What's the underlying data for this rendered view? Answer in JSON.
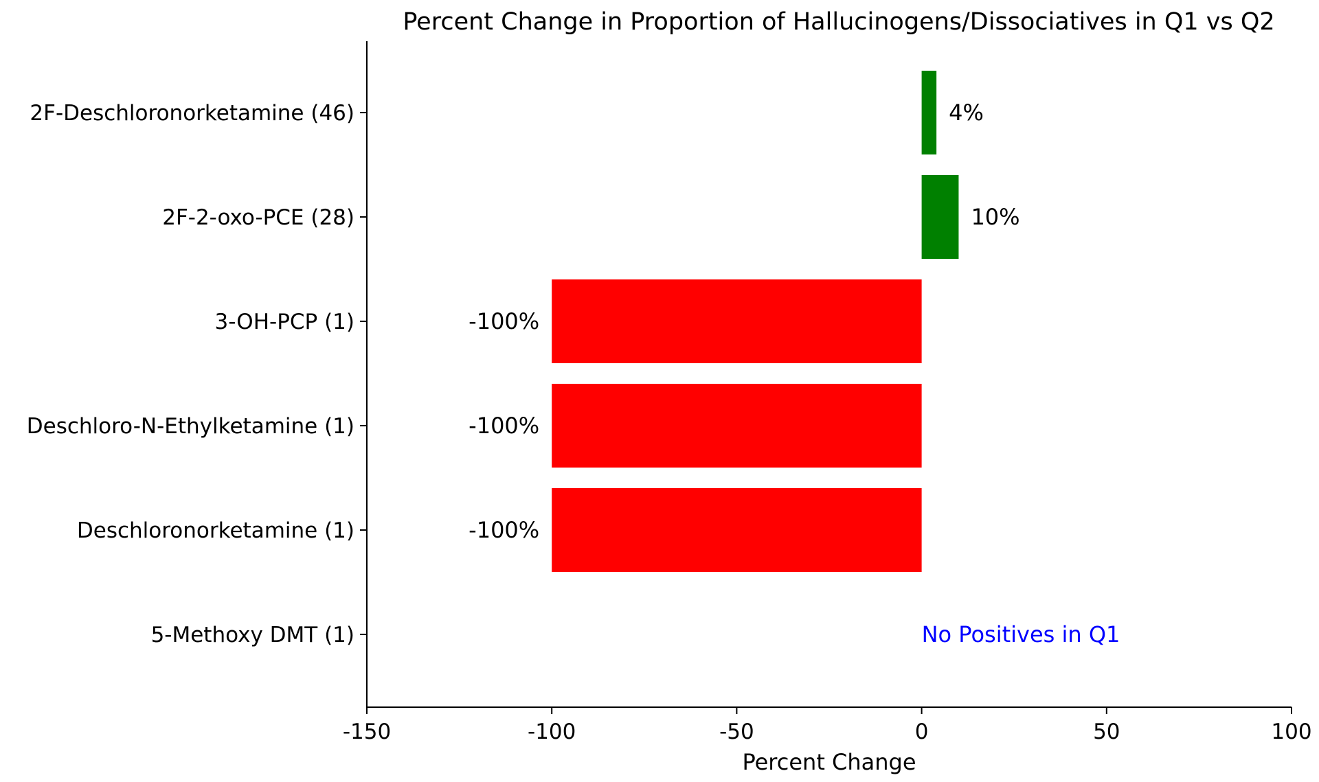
{
  "chart_data": {
    "type": "bar",
    "orientation": "horizontal",
    "title": "Percent Change in Proportion of Hallucinogens/Dissociatives in Q1 vs Q2",
    "xlabel": "Percent Change",
    "ylabel": "",
    "xlim": [
      -150,
      100
    ],
    "xticks": [
      -150,
      -100,
      -50,
      0,
      50,
      100
    ],
    "xtick_labels": [
      "-150",
      "-100",
      "-50",
      "0",
      "50",
      "100"
    ],
    "categories": [
      "2F-Deschloronorketamine (46)",
      "2F-2-oxo-PCE (28)",
      "3-OH-PCP (1)",
      "Deschloro-N-Ethylketamine (1)",
      "Deschloronorketamine (1)",
      "5-Methoxy DMT (1)"
    ],
    "values": [
      4,
      10,
      -100,
      -100,
      -100,
      null
    ],
    "data_labels": [
      "4%",
      "10%",
      "-100%",
      "-100%",
      "-100%",
      ""
    ],
    "colors": {
      "positive": "#008000",
      "negative": "#ff0000",
      "annotation": "#0000ff"
    },
    "annotations": [
      {
        "category": "5-Methoxy DMT (1)",
        "x": 0,
        "text": "No Positives in Q1"
      }
    ],
    "grid": false,
    "legend": "none"
  }
}
